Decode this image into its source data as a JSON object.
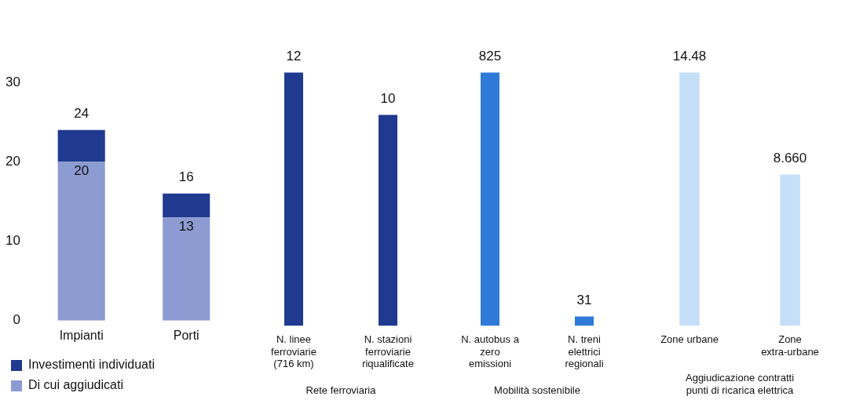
{
  "chart_data": [
    {
      "type": "bar",
      "categories": [
        "Impianti",
        "Porti"
      ],
      "stacked": true,
      "ylim": [
        0,
        30
      ],
      "totals": [
        "24",
        "16"
      ],
      "yticks": [
        0,
        10,
        20,
        30
      ],
      "grid": false,
      "legend": "bottom left",
      "series": [
        {
          "name": "Di cui aggiudicati",
          "color": "#8c9bd2",
          "values": [
            20,
            13
          ],
          "value_labels": [
            "20",
            "13"
          ]
        },
        {
          "name": "Investimenti individuati",
          "color": "#203a8f",
          "values": [
            4,
            3
          ]
        }
      ]
    },
    {
      "type": "bar",
      "categories": [
        "N. linee ferroviarie (716 km)",
        "N. stazioni ferroviarie riqualificate"
      ],
      "xlabel": "Rete ferroviaria",
      "tick_labels": "x",
      "grid": false,
      "data_labels": true,
      "series": [
        {
          "color": "#203a8f",
          "values": [
            12,
            10
          ]
        }
      ]
    },
    {
      "type": "bar",
      "categories": [
        "N. autobus a zero emissioni",
        "N. treni elettrici regionali"
      ],
      "xlabel": "Mobilità sostenibile",
      "tick_labels": "x",
      "grid": false,
      "data_labels": true,
      "series": [
        {
          "color": "#2f7ad8",
          "values": [
            825,
            31
          ]
        }
      ]
    },
    {
      "type": "bar",
      "categories": [
        "Zone urbane",
        "Zone extra-urbane"
      ],
      "xlabel": "Aggiudicazione contratti punti di ricarica elettrica",
      "tick_labels": "x",
      "grid": false,
      "series": [
        {
          "color": "#c6dff8",
          "values": [
            14.48,
            8.66
          ],
          "value_labels": [
            "14.48",
            "8.660"
          ]
        }
      ]
    }
  ]
}
